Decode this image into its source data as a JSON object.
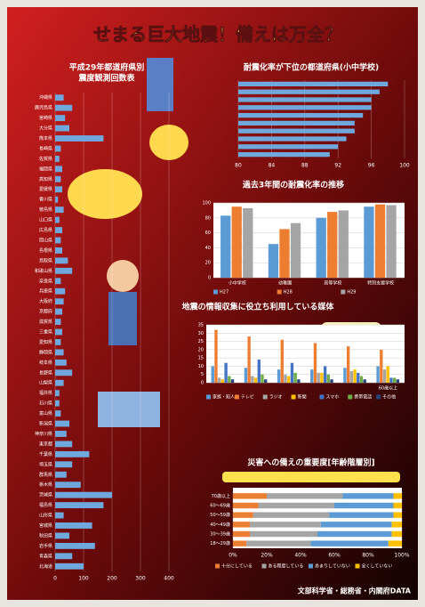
{
  "title": "せまる巨大地震！備えは万全？",
  "footer": "文部科学省・総務省・内閣府DATA",
  "chart_data": [
    {
      "type": "hbar",
      "title": "平成29年都道府県別",
      "subtitle": "震度観測回数表",
      "color": "#6fa8dc",
      "grid": true,
      "categories": [
        "沖縄県",
        "鹿児島県",
        "宮崎県",
        "大分県",
        "熊本県",
        "長崎県",
        "佐賀県",
        "福岡県",
        "高知県",
        "愛媛県",
        "香川県",
        "徳島県",
        "山口県",
        "広島県",
        "岡山県",
        "島根県",
        "鳥取県",
        "和歌山県",
        "奈良県",
        "兵庫県",
        "大阪府",
        "京都府",
        "滋賀県",
        "三重県",
        "愛知県",
        "静岡県",
        "岐阜県",
        "長野県",
        "山梨県",
        "福井県",
        "石川県",
        "富山県",
        "新潟県",
        "神奈川県",
        "東京都",
        "千葉県",
        "埼玉県",
        "群馬県",
        "栃木県",
        "茨城県",
        "福島県",
        "山形県",
        "宮城県",
        "秋田県",
        "岩手県",
        "青森県",
        "北海道"
      ],
      "values": [
        30,
        60,
        35,
        50,
        170,
        20,
        15,
        25,
        20,
        25,
        10,
        30,
        15,
        25,
        20,
        25,
        45,
        60,
        20,
        35,
        30,
        25,
        20,
        25,
        20,
        30,
        40,
        60,
        30,
        15,
        15,
        20,
        50,
        40,
        60,
        120,
        60,
        40,
        90,
        200,
        170,
        30,
        130,
        50,
        140,
        60,
        100
      ],
      "xlim": [
        0,
        400
      ],
      "xticks": [
        0,
        100,
        200,
        300,
        400
      ]
    },
    {
      "type": "hbar",
      "title": "耐震化率が下位の都道府県(小中学校)",
      "color": "#6fa8dc",
      "grid": true,
      "categories": [
        null,
        null,
        null,
        null,
        null,
        null,
        null,
        null,
        null,
        null
      ],
      "values": [
        98,
        97,
        96,
        96,
        95,
        94,
        94,
        93,
        92,
        91
      ],
      "xlim": [
        80,
        100
      ],
      "xticks": [
        80,
        84,
        88,
        92,
        96,
        100
      ]
    },
    {
      "type": "bar",
      "title": "過去3年間の耐震化率の推移",
      "grid": true,
      "categories": [
        "小中学校",
        "幼稚園",
        "高等学校",
        "特別支援学校"
      ],
      "series": [
        {
          "name": "H27",
          "color": "#5b9bd5",
          "values": [
            83,
            45,
            80,
            95
          ]
        },
        {
          "name": "H28",
          "color": "#ed7d31",
          "values": [
            95,
            65,
            88,
            98
          ]
        },
        {
          "name": "H29",
          "color": "#a5a5a5",
          "values": [
            93,
            73,
            90,
            97
          ]
        }
      ],
      "ylim": [
        0,
        100
      ],
      "yticks": [
        0,
        20,
        40,
        60,
        80,
        100
      ]
    },
    {
      "type": "bar",
      "title": "地震の情報収集に役立ち利用している媒体",
      "grid": true,
      "categories": [
        null,
        null,
        null,
        null,
        null,
        "60歳以上"
      ],
      "series": [
        {
          "name": "家族・知人",
          "color": "#5b9bd5",
          "values": [
            10,
            9,
            8,
            8,
            9,
            10
          ]
        },
        {
          "name": "テレビ",
          "color": "#ed7d31",
          "values": [
            32,
            28,
            26,
            24,
            22,
            20
          ]
        },
        {
          "name": "ラジオ",
          "color": "#a5a5a5",
          "values": [
            3,
            4,
            5,
            6,
            7,
            8
          ]
        },
        {
          "name": "新聞",
          "color": "#ffc000",
          "values": [
            2,
            3,
            4,
            6,
            8,
            10
          ]
        },
        {
          "name": "スマホ",
          "color": "#4472c4",
          "values": [
            12,
            14,
            12,
            10,
            6,
            3
          ]
        },
        {
          "name": "携帯電話",
          "color": "#70ad47",
          "values": [
            4,
            5,
            6,
            5,
            4,
            3
          ]
        },
        {
          "name": "その他",
          "color": "#264478",
          "values": [
            2,
            2,
            2,
            2,
            2,
            2
          ]
        }
      ],
      "ylim": [
        0,
        35
      ],
      "yticks": [
        0,
        5,
        10,
        15,
        20,
        25,
        30,
        35
      ]
    },
    {
      "type": "stacked_hbar",
      "title": "災害への備えの重要度[年齢階層別]",
      "categories": [
        "70歳以上",
        "60〜69歳",
        "50〜59歳",
        "40〜49歳",
        "30〜39歳",
        "18〜29歳"
      ],
      "series": [
        {
          "name": "十分にしている",
          "color": "#ed7d31",
          "values": [
            20,
            15,
            12,
            10,
            10,
            8
          ]
        },
        {
          "name": "ある程度している",
          "color": "#a5a5a5",
          "values": [
            45,
            45,
            45,
            42,
            40,
            38
          ]
        },
        {
          "name": "あまりしていない",
          "color": "#5b9bd5",
          "values": [
            30,
            35,
            38,
            42,
            44,
            46
          ]
        },
        {
          "name": "全くしていない",
          "color": "#ffc000",
          "values": [
            5,
            5,
            5,
            6,
            6,
            8
          ]
        }
      ],
      "xlim": [
        0,
        100
      ],
      "xticks": [
        {
          "value": 0,
          "label": "0%"
        },
        {
          "value": 20,
          "label": "20%"
        },
        {
          "value": 40,
          "label": "40%"
        },
        {
          "value": 60,
          "label": "60%"
        },
        {
          "value": 80,
          "label": "80%"
        },
        {
          "value": 100,
          "label": "100%"
        }
      ]
    }
  ]
}
